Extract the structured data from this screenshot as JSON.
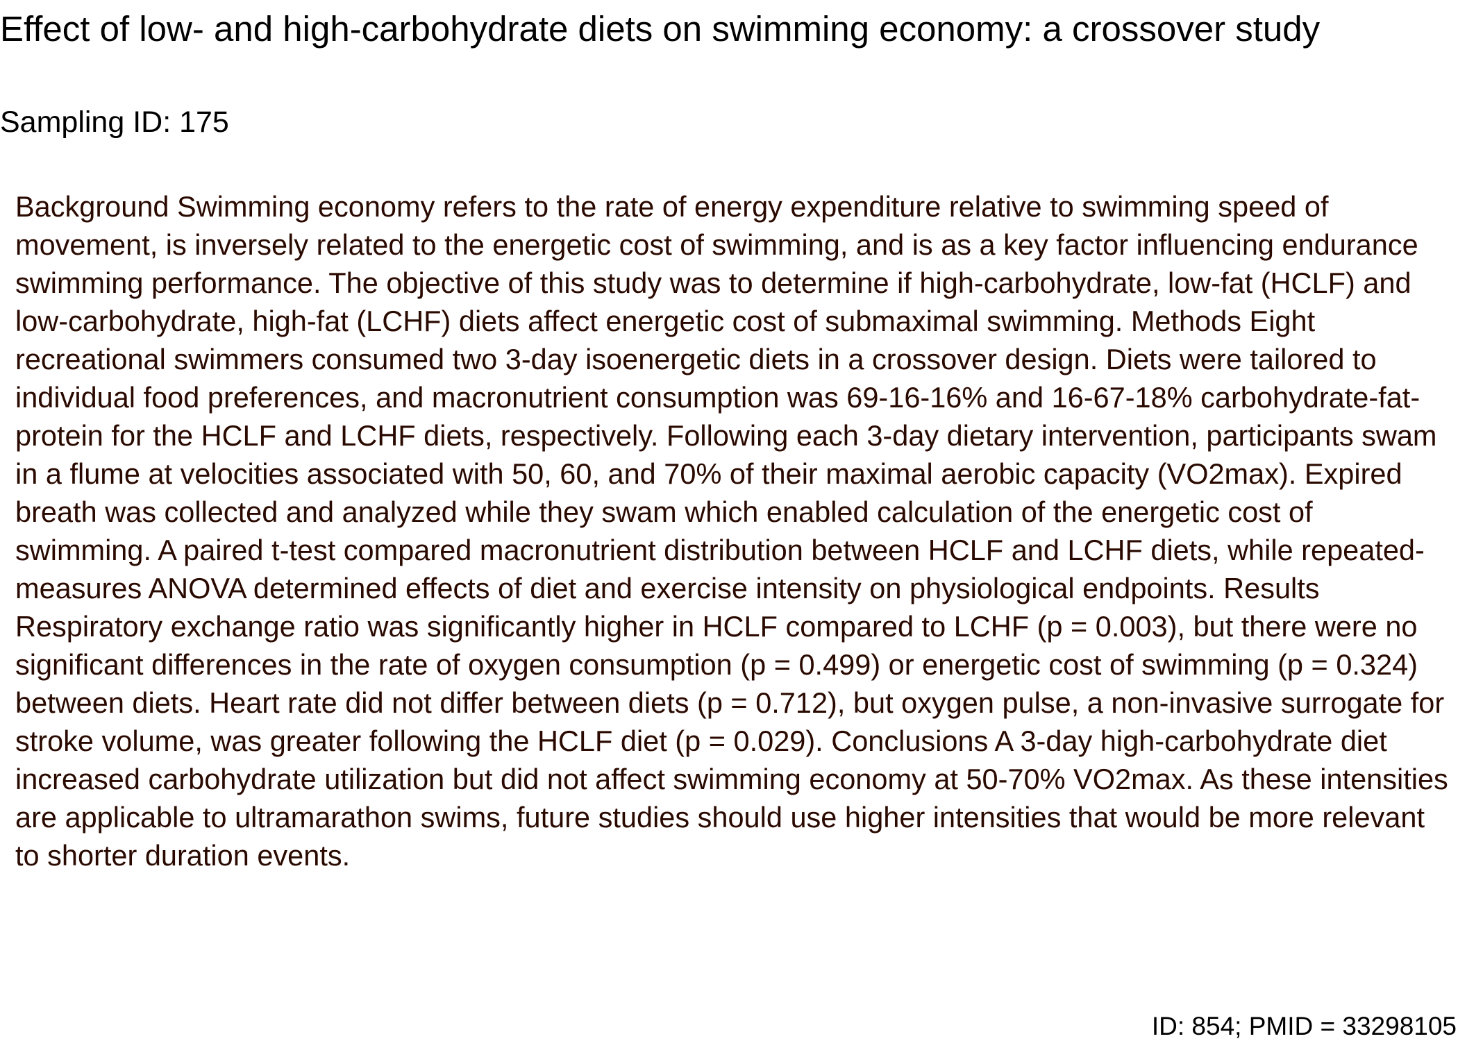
{
  "document": {
    "title": "Effect of low- and high-carbohydrate diets on swimming economy: a crossover study",
    "sampling_id": "Sampling ID: 175",
    "abstract": "Background Swimming economy refers to the rate of energy expenditure relative to swimming speed of movement, is inversely related to the energetic cost of swimming, and is as a key factor influencing endurance swimming performance. The objective of this study was to determine if high-carbohydrate, low-fat (HCLF) and low-carbohydrate, high-fat (LCHF) diets affect energetic cost of submaximal swimming. Methods Eight recreational swimmers consumed two 3-day isoenergetic diets in a crossover design. Diets were tailored to individual food preferences, and macronutrient consumption was 69-16-16% and 16-67-18% carbohydrate-fat-protein for the HCLF and LCHF diets, respectively. Following each 3-day dietary intervention, participants swam in a flume at velocities associated with 50, 60, and 70% of their maximal aerobic capacity (VO2max). Expired breath was collected and analyzed while they swam which enabled calculation of the energetic cost of swimming. A paired t-test compared macronutrient distribution between HCLF and LCHF diets, while repeated-measures ANOVA determined effects of diet and exercise intensity on physiological endpoints. Results Respiratory exchange ratio was significantly higher in HCLF compared to LCHF (p = 0.003), but there were no significant differences in the rate of oxygen consumption (p = 0.499) or energetic cost of swimming (p = 0.324) between diets. Heart rate did not differ between diets (p = 0.712), but oxygen pulse, a non-invasive surrogate for stroke volume, was greater following the HCLF diet (p = 0.029). Conclusions A 3-day high-carbohydrate diet increased carbohydrate utilization but did not affect swimming economy at 50-70% VO2max. As these intensities are applicable to ultramarathon swims, future studies should use higher intensities that would be more relevant to shorter duration events.",
    "footer": "ID: 854; PMID = 33298105"
  },
  "colors": {
    "title_text": "#000000",
    "abstract_text": "#2a0a00",
    "background": "#ffffff"
  }
}
